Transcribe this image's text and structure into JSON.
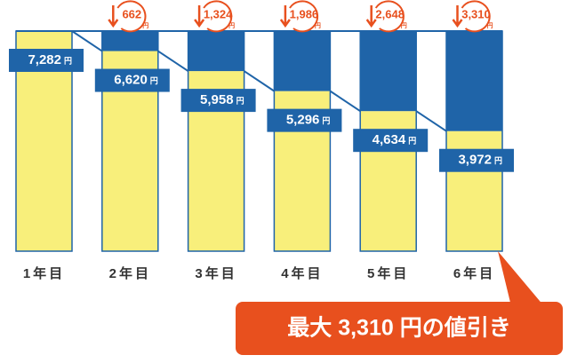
{
  "chart_data": {
    "type": "bar",
    "categories": [
      "1年目",
      "2年目",
      "3年目",
      "4年目",
      "5年目",
      "6年目"
    ],
    "unit": "円",
    "series": [
      {
        "color": "#f8ef7b",
        "values": [
          7282,
          6620,
          5958,
          5296,
          4634,
          3972
        ],
        "value_labels": [
          "7,282",
          "6,620",
          "5,958",
          "5,296",
          "4,634",
          "3,972"
        ]
      },
      {
        "color": "#1f64a8",
        "values": [
          null,
          662,
          1324,
          1986,
          2648,
          3310
        ],
        "value_labels": [
          null,
          "662",
          "1,324",
          "1,986",
          "2,648",
          "3,310"
        ]
      }
    ],
    "annotation": "最大 3,310 円の値引き",
    "accent": "#e8501e"
  }
}
